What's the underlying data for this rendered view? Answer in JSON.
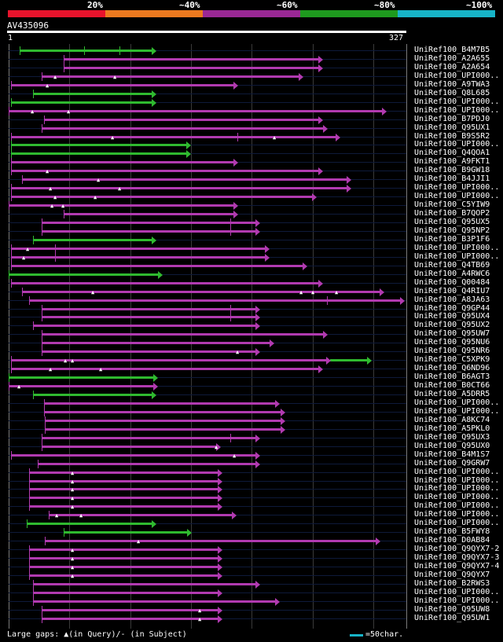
{
  "legend": {
    "labels": [
      "20%",
      "~40%",
      "~60%",
      "~80%",
      "~100%"
    ],
    "colors": [
      "#e8132c",
      "#ed7a1f",
      "#9a2895",
      "#1e9a1e",
      "#17b4c8"
    ]
  },
  "query": {
    "name": "AV435096",
    "start": "1",
    "end": "327",
    "length": 327
  },
  "footer": {
    "gaps_label": "Large gaps: ▲(in Query)/- (in Subject)",
    "scale_label": "=50char."
  },
  "colors": {
    "purple": "#b13ab0",
    "green": "#2fba2f"
  },
  "hits": [
    {
      "name": "UniRef100_B4M7B5",
      "s": 9,
      "e": 121,
      "c": "green",
      "m": [],
      "t": [
        62,
        91
      ]
    },
    {
      "name": "UniRef100_A2A655",
      "s": 45,
      "e": 258,
      "c": "purple",
      "m": [],
      "t": []
    },
    {
      "name": "UniRef100_A2A654",
      "s": 45,
      "e": 258,
      "c": "purple",
      "m": [],
      "t": []
    },
    {
      "name": "UniRef100_UPI000..",
      "s": 27,
      "e": 242,
      "c": "purple",
      "m": [
        39,
        88
      ],
      "t": []
    },
    {
      "name": "UniRef100_A9TWA3",
      "s": 2,
      "e": 188,
      "c": "purple",
      "m": [
        32
      ],
      "t": []
    },
    {
      "name": "UniRef100_Q8L685",
      "s": 20,
      "e": 121,
      "c": "green",
      "m": [],
      "t": []
    },
    {
      "name": "UniRef100_UPI000..",
      "s": 2,
      "e": 121,
      "c": "green",
      "m": [],
      "t": []
    },
    {
      "name": "UniRef100_UPI000..",
      "s": 0,
      "e": 310,
      "c": "purple",
      "m": [
        20,
        50
      ],
      "t": []
    },
    {
      "name": "UniRef100_B7PDJ0",
      "s": 29,
      "e": 258,
      "c": "purple",
      "m": [],
      "t": []
    },
    {
      "name": "UniRef100_Q95UX1",
      "s": 27,
      "e": 262,
      "c": "purple",
      "m": [],
      "t": []
    },
    {
      "name": "UniRef100_B9S5R2",
      "s": 2,
      "e": 272,
      "c": "purple",
      "m": [
        86,
        219
      ],
      "t": [
        188
      ]
    },
    {
      "name": "UniRef100_UPI000..",
      "s": 2,
      "e": 149,
      "c": "green",
      "m": [],
      "t": []
    },
    {
      "name": "UniRef100_Q4QOA1",
      "s": 2,
      "e": 149,
      "c": "green",
      "m": [],
      "t": []
    },
    {
      "name": "UniRef100_A9FKT1",
      "s": 2,
      "e": 188,
      "c": "purple",
      "m": [],
      "t": []
    },
    {
      "name": "UniRef100_B9GW18",
      "s": 2,
      "e": 258,
      "c": "purple",
      "m": [
        32
      ],
      "t": []
    },
    {
      "name": "UniRef100_B4JJI1",
      "s": 11,
      "e": 281,
      "c": "purple",
      "m": [
        74
      ],
      "t": []
    },
    {
      "name": "UniRef100_UPI000..",
      "s": 2,
      "e": 281,
      "c": "purple",
      "m": [
        35,
        92
      ],
      "t": []
    },
    {
      "name": "UniRef100_UPI000..",
      "s": 2,
      "e": 253,
      "c": "purple",
      "m": [
        39,
        72
      ],
      "t": []
    },
    {
      "name": "UniRef100_C5YIW9",
      "s": 0,
      "e": 188,
      "c": "purple",
      "m": [
        36,
        45
      ],
      "t": []
    },
    {
      "name": "UniRef100_B7QOP2",
      "s": 45,
      "e": 188,
      "c": "purple",
      "m": [],
      "t": []
    },
    {
      "name": "UniRef100_Q95UX5",
      "s": 27,
      "e": 206,
      "c": "purple",
      "m": [],
      "t": [
        182
      ]
    },
    {
      "name": "UniRef100_Q95NP2",
      "s": 27,
      "e": 206,
      "c": "purple",
      "m": [],
      "t": [
        182
      ]
    },
    {
      "name": "UniRef100_B3P1F6",
      "s": 20,
      "e": 121,
      "c": "green",
      "m": [],
      "t": []
    },
    {
      "name": "UniRef100_UPI000..",
      "s": 2,
      "e": 214,
      "c": "purple",
      "m": [
        16
      ],
      "t": [
        38
      ]
    },
    {
      "name": "UniRef100_UPI000..",
      "s": 2,
      "e": 214,
      "c": "purple",
      "m": [
        13
      ],
      "t": [
        38
      ]
    },
    {
      "name": "UniRef100_Q4TB69",
      "s": 2,
      "e": 245,
      "c": "purple",
      "m": [],
      "t": []
    },
    {
      "name": "UniRef100_A4RWC6",
      "s": 0,
      "e": 126,
      "c": "green",
      "m": [],
      "t": []
    },
    {
      "name": "UniRef100_Q00484",
      "s": 2,
      "e": 258,
      "c": "purple",
      "m": [],
      "t": []
    },
    {
      "name": "UniRef100_Q4RIU7",
      "s": 11,
      "e": 308,
      "c": "purple",
      "m": [
        70,
        241,
        251,
        270
      ],
      "t": []
    },
    {
      "name": "UniRef100_A8JA63",
      "s": 17,
      "e": 325,
      "c": "purple",
      "m": [],
      "t": [
        262
      ]
    },
    {
      "name": "UniRef100_Q9GP44",
      "s": 27,
      "e": 206,
      "c": "purple",
      "m": [],
      "t": [
        182
      ]
    },
    {
      "name": "UniRef100_Q95UX4",
      "s": 27,
      "e": 206,
      "c": "purple",
      "m": [],
      "t": [
        182
      ]
    },
    {
      "name": "UniRef100_Q95UX2",
      "s": 20,
      "e": 206,
      "c": "purple",
      "m": [],
      "t": []
    },
    {
      "name": "UniRef100_Q95UW7",
      "s": 27,
      "e": 262,
      "c": "purple",
      "m": [],
      "t": []
    },
    {
      "name": "UniRef100_Q95NU6",
      "s": 27,
      "e": 218,
      "c": "purple",
      "m": [],
      "t": []
    },
    {
      "name": "UniRef100_Q95NR6",
      "s": 27,
      "e": 206,
      "c": "purple",
      "m": [
        189
      ],
      "t": []
    },
    {
      "name": "UniRef100_C5XPK9",
      "s": 2,
      "e": 298,
      "c": "purple",
      "m": [
        47,
        53
      ],
      "t": [],
      "green_end": {
        "s": 264,
        "e": 298
      }
    },
    {
      "name": "UniRef100_Q6ND96",
      "s": 2,
      "e": 258,
      "c": "purple",
      "m": [
        35,
        76
      ],
      "t": []
    },
    {
      "name": "UniRef100_B6AGT3",
      "s": 0,
      "e": 122,
      "c": "green",
      "m": [],
      "t": []
    },
    {
      "name": "UniRef100_B0CT66",
      "s": 0,
      "e": 122,
      "c": "purple",
      "m": [
        9
      ],
      "t": []
    },
    {
      "name": "UniRef100_A5DRR5",
      "s": 20,
      "e": 121,
      "c": "green",
      "m": [],
      "t": []
    },
    {
      "name": "UniRef100_UPI000..",
      "s": 29,
      "e": 222,
      "c": "purple",
      "m": [],
      "t": []
    },
    {
      "name": "UniRef100_UPI000..",
      "s": 29,
      "e": 227,
      "c": "purple",
      "m": [],
      "t": []
    },
    {
      "name": "UniRef100_A8KC74",
      "s": 30,
      "e": 227,
      "c": "purple",
      "m": [],
      "t": []
    },
    {
      "name": "UniRef100_A5PKL0",
      "s": 30,
      "e": 227,
      "c": "purple",
      "m": [],
      "t": []
    },
    {
      "name": "UniRef100_Q95UX3",
      "s": 27,
      "e": 206,
      "c": "purple",
      "m": [],
      "t": [
        182
      ]
    },
    {
      "name": "UniRef100_Q95UX0",
      "s": 27,
      "e": 174,
      "c": "purple",
      "m": [
        171
      ],
      "t": []
    },
    {
      "name": "UniRef100_B4M1S7",
      "s": 2,
      "e": 206,
      "c": "purple",
      "m": [
        186
      ],
      "t": []
    },
    {
      "name": "UniRef100_Q9GRW7",
      "s": 24,
      "e": 206,
      "c": "purple",
      "m": [],
      "t": []
    },
    {
      "name": "UniRef100_UPI000..",
      "s": 17,
      "e": 175,
      "c": "purple",
      "m": [
        53
      ],
      "t": []
    },
    {
      "name": "UniRef100_UPI000..",
      "s": 17,
      "e": 175,
      "c": "purple",
      "m": [
        53
      ],
      "t": []
    },
    {
      "name": "UniRef100_UPI000..",
      "s": 17,
      "e": 175,
      "c": "purple",
      "m": [
        53
      ],
      "t": []
    },
    {
      "name": "UniRef100_UPI000..",
      "s": 17,
      "e": 175,
      "c": "purple",
      "m": [
        53
      ],
      "t": []
    },
    {
      "name": "UniRef100_UPI000..",
      "s": 17,
      "e": 175,
      "c": "purple",
      "m": [
        53
      ],
      "t": []
    },
    {
      "name": "UniRef100_UPI000..",
      "s": 33,
      "e": 187,
      "c": "purple",
      "m": [
        40,
        60
      ],
      "t": []
    },
    {
      "name": "UniRef100_UPI000..",
      "s": 15,
      "e": 121,
      "c": "green",
      "m": [],
      "t": []
    },
    {
      "name": "UniRef100_B5FWY8",
      "s": 45,
      "e": 150,
      "c": "green",
      "m": [],
      "t": []
    },
    {
      "name": "UniRef100_D0AB84",
      "s": 30,
      "e": 305,
      "c": "purple",
      "m": [
        107
      ],
      "t": []
    },
    {
      "name": "UniRef100_Q9QYX7-2",
      "s": 17,
      "e": 175,
      "c": "purple",
      "m": [
        53
      ],
      "t": []
    },
    {
      "name": "UniRef100_Q9QYX7-3",
      "s": 17,
      "e": 175,
      "c": "purple",
      "m": [
        53
      ],
      "t": []
    },
    {
      "name": "UniRef100_Q9QYX7-4",
      "s": 17,
      "e": 175,
      "c": "purple",
      "m": [
        53
      ],
      "t": []
    },
    {
      "name": "UniRef100_Q9QYX7",
      "s": 17,
      "e": 175,
      "c": "purple",
      "m": [
        53
      ],
      "t": []
    },
    {
      "name": "UniRef100_B2RWS3",
      "s": 20,
      "e": 206,
      "c": "purple",
      "m": [],
      "t": []
    },
    {
      "name": "UniRef100_UPI000..",
      "s": 20,
      "e": 175,
      "c": "purple",
      "m": [],
      "t": []
    },
    {
      "name": "UniRef100_UPI000..",
      "s": 20,
      "e": 222,
      "c": "purple",
      "m": [],
      "t": []
    },
    {
      "name": "UniRef100_Q95UW8",
      "s": 27,
      "e": 175,
      "c": "purple",
      "m": [
        158
      ],
      "t": []
    },
    {
      "name": "UniRef100_Q95UW1",
      "s": 27,
      "e": 175,
      "c": "purple",
      "m": [
        158
      ],
      "t": []
    }
  ]
}
